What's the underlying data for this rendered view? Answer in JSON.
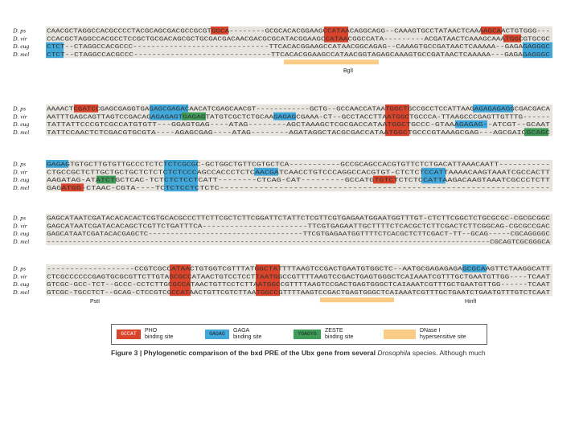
{
  "colors": {
    "pho": "#d9442a",
    "gaga": "#41a8dc",
    "zeste": "#3f9c56",
    "dnase": "#f8cc84",
    "conserved": "#e7e4de"
  },
  "species": [
    "D. ps",
    "D. vir",
    "D. eug",
    "D. mel"
  ],
  "blocks": [
    {
      "rows": [
        "CAACGCTAGGCCACGCCCCTACGCAGCGACGCCGCGTGGCA--------GCGCACACGGAAGCCATAACAGGCAGG--CAAAGTGCCTATAACTCAAAAGCAACTGTGGG---",
        "CCACGCTAGGCCACGCCTCCGCTGCGACAGCGCTGCGACGACAACGACGCGCATACGGAAGCCATAACGGCCATA---------ACGATAACTCAAAGCAAATGGCGTGCGC",
        "CTCT--CTAGGCCACGCCC------------------------------TTCACACGGAAGCCATAACGGCAGAG--CAAAGTGCCGATAACTCAAAAA--GAGAGAGGGC",
        "CTCT--CTAGGCCACGCCC------------------------------TTCACACGGAAGCCATAACGGTAGAGCAAAGTGCCGATAACTCAAAAA---GAGAGAGGGC"
      ],
      "annotation": "BglI"
    },
    {
      "rows": [
        "AAAACTCGATCCGAGCGAGGTGAGAGCGAGACAACATCGAGCAACGT------------GCTG--GCCAACCATAATGGCTGCCGCCTCCATTAAGAGAGAGAGGCGACGACA",
        "AATTTGAGCAGTTAGTCCGACAGAGAGAGTGAGAGTATGTCGCTCTGCAAGAGAGCGAAA-CT--GCCTACCTTAATGGCTGCCCA-TTAAGCCCGAGTTGTTTG------",
        "TATTATTCCCGTCGCCATGTGTT---GGAGTGAG----ATAG--------AGCTAAAGCTCGCGACCATAATGGCTGCCC-GTAAAGAGAG--ATCGT--GCAAT",
        "TATTCCAACTCTCGACGTGCGTA----AGAGCGAG----ATAG--------AGATAGGCTACGCGACCATAATGGCTGCCCGTAAAGCGAG---AGCGAICGCAGC"
      ]
    },
    {
      "rows": [
        "GAGAGTGTGCTTGTGTTGCCCTCTCTCTCGCGC-GCTGGCTGTTCGTGCTCA-----------GCCGCAGCCACGTGTTCTCTGACATTAAACAATT-----------",
        "CTGCCGCTCTTGCTGCTGCTCTCTCTCTCCCAGCCACCCTCTCAACGATCAACCTGTCCCAGGCCACGTGT-CTCTCTCCATTAAAACAAGTAAATCGCCACTT",
        "AAGATAG-ATATCTGCTCAC-TCTCTCTCCTCATT--------CTCAG-CAT---------GCCATGTGTCTCTCTCCATTAAGACAAGTAAATCGCCCTCTT",
        "GAGATGG-CTAAC-CGTA----TCTCTCCTCTCTC-------------------------------------------------------------------"
      ]
    },
    {
      "rows": [
        "GAGCATAATCGATACACACACTCGTGCACGCCCTTCTTCGCTCTTCGGATTCTATTCTCGTTCGTGAGAATGGAATGGTTTGT-CTCTTCGGCTCTGCGCGC-CGCGCGGC",
        "GAGCATAATCGATACACAGCTCGTTCTGATTTCA-----------------------TTCGTGAGAATTGCTTTTCTCACGCTCTTCGACTCTTCGGCAG-CGCGCCGAC",
        "GAGCATAATCGATACACGAGCTC-----------------------------------TTCGTGAGAATGGTTTTCTCACGCTCTTCGACT-TT--GCAG-----CGCAGGGGC",
        "-------------------------------------------------------------------------------------------------------CGCAGTCGCGGGCA"
      ]
    },
    {
      "rows": [
        "-------------------CCGTCGCCATAACTGTGGTCGTTTATGGCTATTTTAAGTCCGACTGAATGTGGCTC--AATGCGAGAGAGAGCGCAAGTTCTAAGGCATT",
        "CTCGCCCCCCGAGTGCGCGTTCTTGTAGCGCCATAACTGTCCTCCTTAATGGCCGTTTTAAGTCCGACTGAGTGGGCTCAIAAATCGTTTGCTGAATGTTGG----TCAAT",
        "GTCGC-GCC-TCT--GCCC-CCTCTTGCGCCATAACTGTTCCTCTTAATGGCCGTTTTAAGTCCGACTGAGTGGGCTCAIAAATCGTTTGCTGAATGTTGG------TCAAT",
        "GTCGC-TGCCTCT--GCAG-CTCCGTCGCCATAACTGTTCGTCTTAATGGCCGTTTTAAGTCCGACTGAGTGGGCTCAIAAATCGTTTGCTGAATCTGAATGTTTGTCTCAAT"
      ],
      "annotations": [
        "PstI",
        "HinfI"
      ]
    }
  ],
  "legend": [
    {
      "swatch": "GCCAT",
      "label1": "PHO",
      "label2": "binding site",
      "color_key": "pho"
    },
    {
      "swatch": "GAGAG",
      "label1": "GAGA",
      "label2": "binding site",
      "color_key": "gaga"
    },
    {
      "swatch": "YGAGYG",
      "label1": "ZESTE",
      "label2": "binding site",
      "color_key": "zeste"
    },
    {
      "swatch": "",
      "label1": "DNase I",
      "label2": "hypersensitive site",
      "color_key": "dnase"
    }
  ],
  "caption": {
    "figure": "Figure 3 | Phylogenetic comparison of the bxd PRE of the Ubx gene from several ",
    "genus": "Drosophila",
    "rest": " species. Although much"
  }
}
